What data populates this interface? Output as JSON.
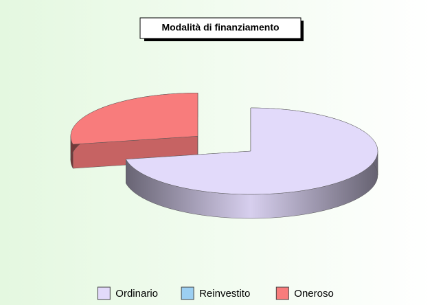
{
  "chart_data": {
    "type": "pie3d",
    "title": "Modalità di finanziamento",
    "categories": [
      "Ordinario",
      "Reinvestito",
      "Oneroso"
    ],
    "values": [
      72,
      0,
      28
    ],
    "colors": [
      "#e2dafa",
      "#9ccff2",
      "#f87c7c"
    ],
    "legend": "bottom"
  }
}
